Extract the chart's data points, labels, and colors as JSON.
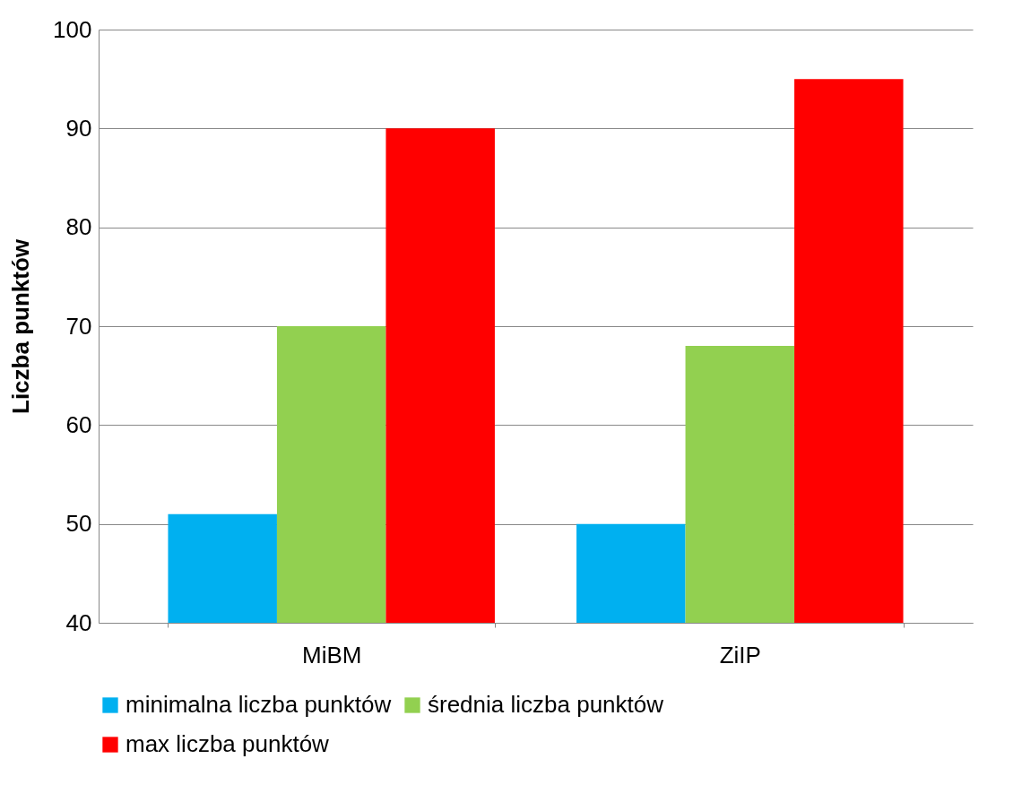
{
  "chart_data": {
    "type": "bar",
    "ylabel": "Liczba punktów",
    "categories": [
      "MiBM",
      "ZiIP"
    ],
    "series": [
      {
        "name": "minimalna liczba punktów",
        "color": "#00b0f0",
        "values": [
          51,
          50
        ]
      },
      {
        "name": "średnia liczba punktów",
        "color": "#92d050",
        "values": [
          70,
          68
        ]
      },
      {
        "name": "max liczba punktów",
        "color": "#ff0000",
        "values": [
          90,
          95
        ]
      }
    ],
    "ylim": [
      40,
      100
    ],
    "yticks": [
      40,
      50,
      60,
      70,
      80,
      90,
      100
    ],
    "grid": "y",
    "legend": "bottom"
  }
}
